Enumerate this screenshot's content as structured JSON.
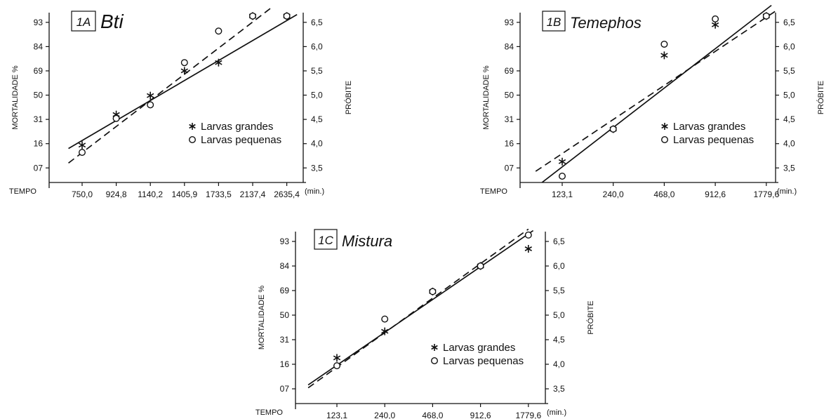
{
  "chart_data": [
    {
      "type": "scatter",
      "panel_label": "1A",
      "title": "Bti",
      "ylabel": "MORTALIDADE %",
      "y2label": "PRÓBITE",
      "xlabel": "TEMPO",
      "x_unit": "(min.)",
      "categories": [
        "750,0",
        "924,8",
        "1140,2",
        "1405,9",
        "1733,5",
        "2137,4",
        "2635,4"
      ],
      "y_ticks": [
        "93",
        "84",
        "69",
        "50",
        "31",
        "16",
        "07"
      ],
      "y2_ticks": [
        "6,5",
        "6,0",
        "5,5",
        "5,0",
        "4,5",
        "4,0",
        "3,5"
      ],
      "y2lim": [
        3.2,
        6.7
      ],
      "grid": false,
      "legend_position": "bottom-right",
      "series": [
        {
          "name": "Larvas grandes",
          "marker": "star",
          "line": "solid",
          "points": [
            [
              0,
              3.97
            ],
            [
              1,
              4.6
            ],
            [
              2,
              4.99
            ],
            [
              3,
              5.5
            ],
            [
              4,
              5.67
            ],
            [
              5,
              6.63
            ],
            [
              6,
              6.63
            ]
          ],
          "fit": [
            [
              -0.4,
              3.9
            ],
            [
              6.3,
              6.66
            ]
          ]
        },
        {
          "name": "Larvas pequenas",
          "marker": "circle",
          "line": "dashed",
          "points": [
            [
              0,
              3.82
            ],
            [
              1,
              4.52
            ],
            [
              2,
              4.8
            ],
            [
              3,
              5.67
            ],
            [
              4,
              6.32
            ],
            [
              5,
              6.63
            ],
            [
              6,
              6.63
            ]
          ],
          "fit": [
            [
              -0.4,
              3.6
            ],
            [
              5.6,
              6.83
            ]
          ]
        }
      ]
    },
    {
      "type": "scatter",
      "panel_label": "1B",
      "title": "Temephos",
      "ylabel": "MORTALIDADE %",
      "y2label": "PRÓBITE",
      "xlabel": "TEMPO",
      "x_unit": "(min.)",
      "categories": [
        "123,1",
        "240,0",
        "468,0",
        "912,6",
        "1779,6"
      ],
      "y_ticks": [
        "93",
        "84",
        "69",
        "50",
        "31",
        "16",
        "07"
      ],
      "y2_ticks": [
        "6,5",
        "6,0",
        "5,5",
        "5,0",
        "4,5",
        "4,0",
        "3,5"
      ],
      "y2lim": [
        3.2,
        6.7
      ],
      "grid": false,
      "legend_position": "bottom-right",
      "series": [
        {
          "name": "Larvas grandes",
          "marker": "star",
          "line": "solid",
          "points": [
            [
              0,
              3.63
            ],
            [
              1,
              4.3
            ],
            [
              2,
              5.82
            ],
            [
              3,
              6.45
            ],
            [
              4,
              6.63
            ]
          ],
          "fit": [
            [
              -0.42,
              3.18
            ],
            [
              4.1,
              6.85
            ]
          ]
        },
        {
          "name": "Larvas pequenas",
          "marker": "circle",
          "line": "dashed",
          "points": [
            [
              0,
              3.33
            ],
            [
              1,
              4.3
            ],
            [
              2,
              6.05
            ],
            [
              3,
              6.57
            ],
            [
              4,
              6.63
            ]
          ],
          "fit": [
            [
              -0.52,
              3.43
            ],
            [
              4.35,
              6.85
            ]
          ]
        }
      ]
    },
    {
      "type": "scatter",
      "panel_label": "1C",
      "title": "Mistura",
      "ylabel": "MORTALIDADE %",
      "y2label": "PRÓBITE",
      "xlabel": "TEMPO",
      "x_unit": "(min.)",
      "categories": [
        "123,1",
        "240,0",
        "468,0",
        "912,6",
        "1779,6"
      ],
      "y_ticks": [
        "93",
        "84",
        "69",
        "50",
        "31",
        "16",
        "07"
      ],
      "y2_ticks": [
        "6,5",
        "6,0",
        "5,5",
        "5,0",
        "4,5",
        "4,0",
        "3,5"
      ],
      "y2lim": [
        3.2,
        6.7
      ],
      "grid": false,
      "legend_position": "bottom-right",
      "series": [
        {
          "name": "Larvas grandes",
          "marker": "star",
          "line": "solid",
          "points": [
            [
              0,
              4.13
            ],
            [
              1,
              4.67
            ],
            [
              2,
              5.48
            ],
            [
              3,
              6.0
            ],
            [
              4,
              6.35
            ]
          ],
          "fit": [
            [
              -0.6,
              3.58
            ],
            [
              4.1,
              6.72
            ]
          ]
        },
        {
          "name": "Larvas pequenas",
          "marker": "circle",
          "line": "dashed",
          "points": [
            [
              0,
              3.97
            ],
            [
              1,
              4.92
            ],
            [
              2,
              5.48
            ],
            [
              3,
              6.0
            ],
            [
              4,
              6.63
            ]
          ],
          "fit": [
            [
              -0.6,
              3.52
            ],
            [
              4.0,
              6.75
            ]
          ]
        }
      ]
    }
  ]
}
